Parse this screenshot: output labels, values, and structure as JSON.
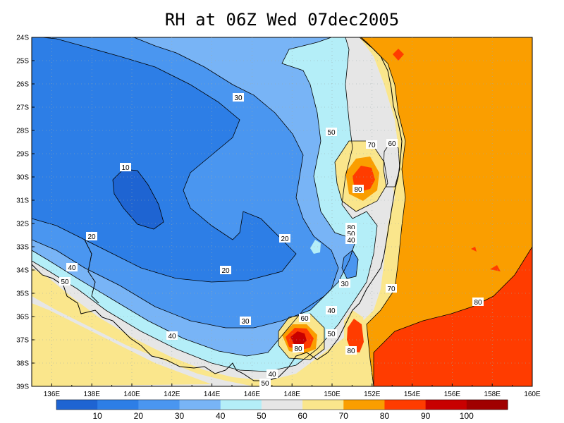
{
  "title": "RH at 06Z Wed 07dec2005",
  "lat_labels": [
    "24S",
    "25S",
    "26S",
    "27S",
    "28S",
    "29S",
    "30S",
    "31S",
    "32S",
    "33S",
    "34S",
    "35S",
    "36S",
    "37S",
    "38S",
    "39S"
  ],
  "lon_labels": [
    "136E",
    "138E",
    "140E",
    "142E",
    "144E",
    "146E",
    "148E",
    "150E",
    "152E",
    "154E",
    "156E",
    "158E",
    "160E"
  ],
  "contour_labels": {
    "c30_top": "30",
    "c10": "10",
    "c20_a": "20",
    "c20_b": "20",
    "c20_c": "20",
    "c50_a": "50",
    "c70_a": "70",
    "c60_a": "60",
    "c80_a": "80",
    "c80_b": "80",
    "c50_b": "50",
    "c40_a": "40",
    "c40_b": "40",
    "c50_c": "50",
    "c30_b": "30",
    "c70_b": "70",
    "c80_c": "80",
    "c30_c": "30",
    "c60_b": "60",
    "c40_c": "40",
    "c50_d": "50",
    "c80_d": "80",
    "c80_e": "80",
    "c40_d": "40",
    "c50_e": "50",
    "c40_e": "40"
  },
  "colorbar": {
    "labels": [
      "10",
      "20",
      "30",
      "40",
      "50",
      "60",
      "70",
      "80",
      "90",
      "100"
    ],
    "colors": [
      "#1e64d2",
      "#2d7ee6",
      "#4a96f0",
      "#78b4f6",
      "#b4eef8",
      "#e6e6e6",
      "#fae68c",
      "#fa9e00",
      "#ff3c00",
      "#c80000",
      "#a00000"
    ]
  },
  "colors": {
    "rh_10_20": "#1e64d2",
    "rh_20_30": "#2d7ee6",
    "rh_30_40": "#4a96f0",
    "rh_40_50": "#78b4f6",
    "rh_50_60": "#b4eef8",
    "rh_60_70": "#e6e6e6",
    "rh_70_80": "#fae68c",
    "rh_80_90": "#fa9e00",
    "rh_90_100": "#ff3c00",
    "rh_100": "#c80000"
  }
}
